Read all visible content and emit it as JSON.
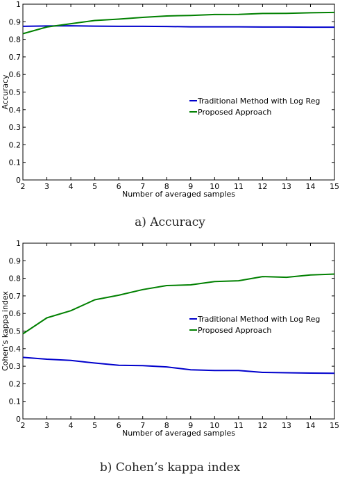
{
  "chart_data": [
    {
      "type": "line",
      "caption": "a) Accuracy",
      "xlabel": "Number of averaged samples",
      "ylabel": "Accuracy",
      "x": [
        2,
        3,
        4,
        5,
        6,
        7,
        8,
        9,
        10,
        11,
        12,
        13,
        14,
        15
      ],
      "xlim": [
        2,
        15
      ],
      "ylim": [
        0,
        1
      ],
      "yticks": [
        "0",
        "0.1",
        "0.2",
        "0.3",
        "0.4",
        "0.5",
        "0.6",
        "0.7",
        "0.8",
        "0.9",
        "1"
      ],
      "xticks": [
        "2",
        "3",
        "4",
        "5",
        "6",
        "7",
        "8",
        "9",
        "10",
        "11",
        "12",
        "13",
        "14",
        "15"
      ],
      "grid": false,
      "legend_position": "center-right",
      "series": [
        {
          "name": "Traditional Method with Log Reg",
          "color": "#0000cc",
          "values": [
            0.874,
            0.876,
            0.877,
            0.875,
            0.874,
            0.874,
            0.873,
            0.871,
            0.871,
            0.871,
            0.87,
            0.87,
            0.869,
            0.869
          ]
        },
        {
          "name": "Proposed Approach",
          "color": "#008000",
          "values": [
            0.832,
            0.87,
            0.889,
            0.907,
            0.915,
            0.925,
            0.933,
            0.936,
            0.941,
            0.942,
            0.947,
            0.948,
            0.951,
            0.953
          ]
        }
      ]
    },
    {
      "type": "line",
      "caption": "b) Cohen’s kappa index",
      "xlabel": "Number of averaged samples",
      "ylabel": "Cohen’s kappa index",
      "x": [
        2,
        3,
        4,
        5,
        6,
        7,
        8,
        9,
        10,
        11,
        12,
        13,
        14,
        15
      ],
      "xlim": [
        2,
        15
      ],
      "ylim": [
        0,
        1
      ],
      "yticks": [
        "0",
        "0.1",
        "0.2",
        "0.3",
        "0.4",
        "0.5",
        "0.6",
        "0.7",
        "0.8",
        "0.9",
        "1"
      ],
      "xticks": [
        "2",
        "3",
        "4",
        "5",
        "6",
        "7",
        "8",
        "9",
        "10",
        "11",
        "12",
        "13",
        "14",
        "15"
      ],
      "grid": false,
      "legend_position": "center-right",
      "series": [
        {
          "name": "Traditional Method with Log Reg",
          "color": "#0000cc",
          "values": [
            0.35,
            0.34,
            0.333,
            0.318,
            0.305,
            0.303,
            0.296,
            0.28,
            0.276,
            0.276,
            0.265,
            0.263,
            0.261,
            0.26
          ]
        },
        {
          "name": "Proposed Approach",
          "color": "#008000",
          "values": [
            0.484,
            0.575,
            0.616,
            0.678,
            0.704,
            0.736,
            0.759,
            0.763,
            0.782,
            0.786,
            0.81,
            0.806,
            0.819,
            0.824
          ]
        }
      ]
    }
  ]
}
